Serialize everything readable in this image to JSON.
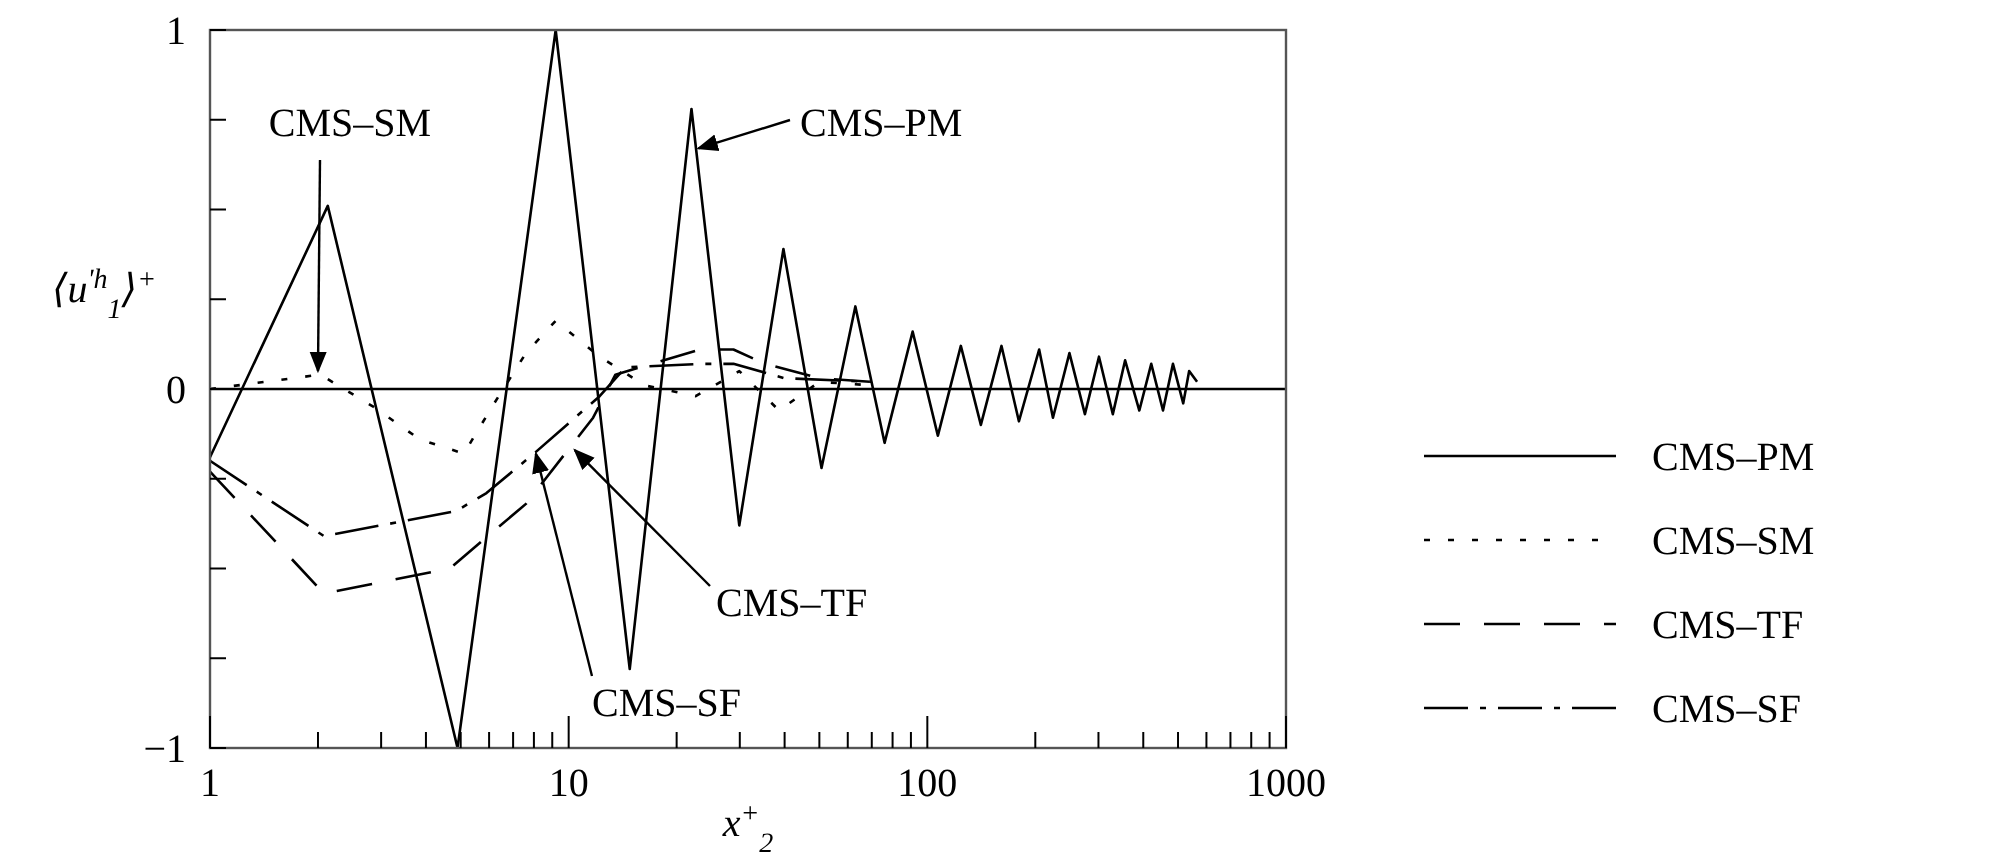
{
  "chart_data": {
    "type": "line",
    "xlabel": "x$^{+}$$_{2}$",
    "ylabel": "⟨u$^{'h}$$_{1}$⟩$^{+}$",
    "log": "x",
    "xlim": [
      1,
      1000
    ],
    "ylim": [
      -1,
      1
    ],
    "xticks": [
      1,
      {
        "value": 2,
        "label": null
      },
      {
        "value": 3,
        "label": null
      },
      {
        "value": 4,
        "label": null
      },
      {
        "value": 5,
        "label": null
      },
      {
        "value": 6,
        "label": null
      },
      {
        "value": 7,
        "label": null
      },
      {
        "value": 8,
        "label": null
      },
      {
        "value": 9,
        "label": null
      },
      10,
      {
        "value": 20,
        "label": null
      },
      {
        "value": 30,
        "label": null
      },
      {
        "value": 40,
        "label": null
      },
      {
        "value": 50,
        "label": null
      },
      {
        "value": 60,
        "label": null
      },
      {
        "value": 70,
        "label": null
      },
      {
        "value": 80,
        "label": null
      },
      {
        "value": 90,
        "label": null
      },
      100,
      {
        "value": 200,
        "label": null
      },
      {
        "value": 300,
        "label": null
      },
      {
        "value": 400,
        "label": null
      },
      {
        "value": 500,
        "label": null
      },
      {
        "value": 600,
        "label": null
      },
      {
        "value": 700,
        "label": null
      },
      {
        "value": 800,
        "label": null
      },
      {
        "value": 900,
        "label": null
      },
      1000
    ],
    "yticks": [
      -1,
      {
        "value": -0.75,
        "label": null
      },
      {
        "value": -0.5,
        "label": null
      },
      {
        "value": -0.25,
        "label": null
      },
      0,
      {
        "value": 0.25,
        "label": null
      },
      {
        "value": 0.5,
        "label": null
      },
      {
        "value": 0.75,
        "label": null
      },
      1
    ],
    "grid": false,
    "legend": "right",
    "marker": "none",
    "ref_lines": [
      {
        "axis": "y",
        "value": 0
      }
    ],
    "series": [
      {
        "name": "CMS–PM",
        "color": "#000000",
        "line_style": "solid",
        "x": [
          1,
          2.13,
          4.9,
          9.2,
          14.8,
          22,
          29.9,
          39.7,
          50.7,
          63,
          76,
          91,
          107,
          124,
          141,
          161,
          180,
          205,
          224,
          249,
          275,
          301,
          329,
          356,
          390,
          421,
          454,
          484,
          517,
          537,
          565
        ],
        "values": [
          -0.19,
          0.51,
          -1,
          1,
          -0.78,
          0.78,
          -0.38,
          0.39,
          -0.22,
          0.23,
          -0.15,
          0.16,
          -0.13,
          0.12,
          -0.1,
          0.12,
          -0.09,
          0.11,
          -0.08,
          0.1,
          -0.07,
          0.09,
          -0.07,
          0.08,
          -0.06,
          0.07,
          -0.06,
          0.07,
          -0.04,
          0.05,
          0.02
        ]
      },
      {
        "name": "CMS–SM",
        "color": "#000000",
        "line_style": "dotted",
        "x": [
          1,
          2.03,
          2.86,
          3.84,
          5.1,
          6.2,
          7.6,
          9.2,
          12.2,
          16.3,
          22.6,
          29.9,
          38.6,
          50,
          70
        ],
        "values": [
          0,
          0.04,
          -0.05,
          -0.14,
          -0.18,
          -0.04,
          0.1,
          0.19,
          0.09,
          0.01,
          -0.02,
          0.05,
          -0.06,
          0.02,
          0.01
        ]
      },
      {
        "name": "CMS–TF",
        "color": "#000000",
        "line_style": "dashed",
        "x": [
          1,
          2.08,
          4.66,
          7.6,
          11.7,
          13.5,
          23.2,
          28.8,
          35.3,
          50,
          70
        ],
        "values": [
          -0.23,
          -0.57,
          -0.5,
          -0.32,
          -0.08,
          0.04,
          0.11,
          0.11,
          0.07,
          0.03,
          0.02
        ]
      },
      {
        "name": "CMS–SF",
        "color": "#000000",
        "line_style": "dashdot",
        "x": [
          1,
          2.08,
          4.85,
          5.9,
          8,
          12.2,
          14.4,
          23.2,
          28.8,
          40,
          70
        ],
        "values": [
          -0.2,
          -0.41,
          -0.34,
          -0.29,
          -0.18,
          -0.02,
          0.06,
          0.07,
          0.07,
          0.03,
          0.02
        ]
      }
    ],
    "annotations": [
      {
        "text": "CMS–SM",
        "x": 2,
        "y": 0.05
      },
      {
        "text": "CMS–PM",
        "x": 23,
        "y": 0.67
      },
      {
        "text": "CMS–TF",
        "x": 10.4,
        "y": -0.17
      },
      {
        "text": "CMS–SF",
        "x": 8.1,
        "y": -0.18
      }
    ]
  }
}
